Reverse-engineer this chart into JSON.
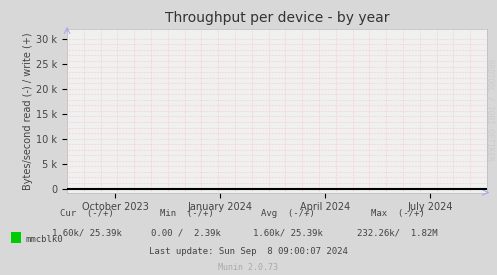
{
  "title": "Throughput per device - by year",
  "ylabel": "Bytes/second read (-) / write (+)",
  "bg_color": "#d8d8d8",
  "plot_bg_color": "#f0f0f0",
  "grid_color": "#ffaaaa",
  "line_color": "#000000",
  "yticks": [
    0,
    5000,
    10000,
    15000,
    20000,
    25000,
    30000
  ],
  "ytick_labels": [
    "0",
    "5 k",
    "10 k",
    "15 k",
    "20 k",
    "25 k",
    "30 k"
  ],
  "ylim": [
    -800,
    32000
  ],
  "xlim": [
    0,
    1
  ],
  "xtick_positions": [
    0.115,
    0.365,
    0.615,
    0.865
  ],
  "xtick_labels": [
    "October 2023",
    "January 2024",
    "April 2024",
    "July 2024"
  ],
  "legend_color": "#00cc00",
  "legend_label": "mmcblk0",
  "footer_col1_header": "Cur  (-/+)",
  "footer_col2_header": "Min  (-/+)",
  "footer_col3_header": "Avg  (-/+)",
  "footer_col4_header": "Max  (-/+)",
  "footer_cur": "1.60k/ 25.39k",
  "footer_min": "0.00 /  2.39k",
  "footer_avg": "1.60k/ 25.39k",
  "footer_max": "232.26k/  1.82M",
  "footer_lastupdate": "Last update: Sun Sep  8 09:00:07 2024",
  "footer_munin": "Munin 2.0.73",
  "watermark": "RRDTOOL / TOBI OETIKER",
  "title_fontsize": 10,
  "axis_fontsize": 7,
  "footer_fontsize": 6.5,
  "watermark_fontsize": 5.5,
  "num_vgrid": 26,
  "num_hgrid": 28
}
